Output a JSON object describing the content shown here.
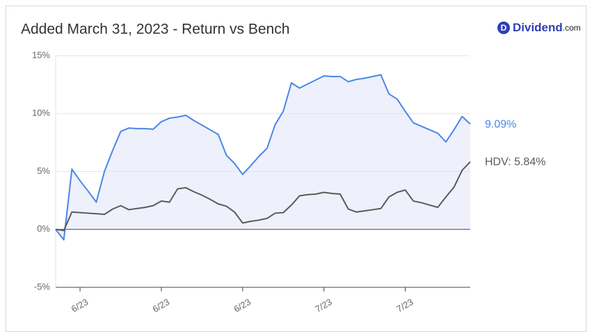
{
  "chart_data": {
    "type": "line",
    "title": "Added March 31, 2023 - Return vs Bench",
    "logo": {
      "icon": "D",
      "name": "Dividend",
      "suffix": ".com"
    },
    "categories": [
      null,
      null,
      null,
      "6/23",
      null,
      null,
      null,
      null,
      null,
      null,
      null,
      null,
      null,
      "6/23",
      null,
      null,
      null,
      null,
      null,
      null,
      null,
      null,
      null,
      "6/23",
      null,
      null,
      null,
      null,
      null,
      null,
      null,
      null,
      null,
      "7/23",
      null,
      null,
      null,
      null,
      null,
      null,
      null,
      null,
      null,
      "7/23",
      null,
      null,
      null,
      null,
      null,
      null,
      null,
      null
    ],
    "series": [
      {
        "color": "#4a86e8",
        "fill": "#eef0fb",
        "end_label": "9.09%",
        "values": [
          0,
          -0.9,
          5.2,
          4.2,
          3.3,
          2.35,
          5.0,
          6.8,
          8.45,
          8.75,
          8.7,
          8.7,
          8.65,
          9.3,
          9.6,
          9.7,
          9.85,
          9.4,
          9.0,
          8.6,
          8.2,
          6.4,
          5.7,
          4.75,
          5.5,
          6.3,
          7.0,
          9.05,
          10.2,
          12.65,
          12.2,
          12.55,
          12.9,
          13.25,
          13.2,
          13.2,
          12.75,
          12.95,
          13.05,
          13.2,
          13.35,
          11.7,
          11.25,
          10.2,
          9.2,
          8.9,
          8.6,
          8.3,
          7.55,
          8.6,
          9.75,
          9.09
        ]
      },
      {
        "color": "#5b5b5b",
        "end_label": "HDV: 5.84%",
        "values": [
          0,
          -0.1,
          1.5,
          1.45,
          1.4,
          1.35,
          1.3,
          1.75,
          2.05,
          1.7,
          1.8,
          1.9,
          2.05,
          2.45,
          2.35,
          3.5,
          3.6,
          3.25,
          2.95,
          2.6,
          2.2,
          2.0,
          1.5,
          0.55,
          0.7,
          0.8,
          0.95,
          1.4,
          1.45,
          2.1,
          2.9,
          3.0,
          3.05,
          3.2,
          3.1,
          3.05,
          1.75,
          1.5,
          1.6,
          1.7,
          1.8,
          2.8,
          3.2,
          3.4,
          2.45,
          2.3,
          2.1,
          1.9,
          2.8,
          3.65,
          5.1,
          5.84
        ]
      }
    ],
    "ylim": [
      -5,
      15
    ],
    "yticks": [
      {
        "value": -5,
        "label": "-5%"
      },
      {
        "value": 0,
        "label": "0%"
      },
      {
        "value": 5,
        "label": "5%"
      },
      {
        "value": 10,
        "label": "10%"
      },
      {
        "value": 15,
        "label": "15%"
      }
    ],
    "grid": true
  }
}
